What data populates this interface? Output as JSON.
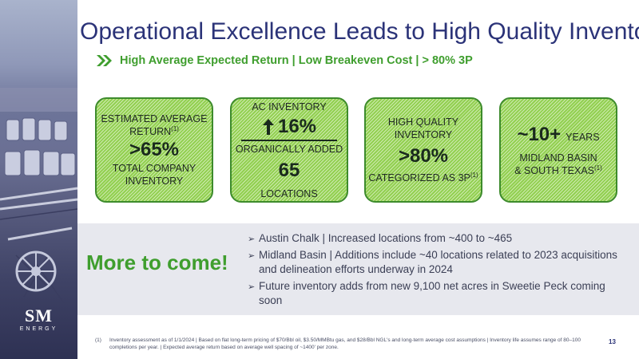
{
  "title": "Operational Excellence Leads to High Quality Inventory",
  "subtitle": "High Average Expected Return | Low Breakeven Cost | > 80% 3P",
  "cards": [
    {
      "line1": "ESTIMATED AVERAGE",
      "line2": "RETURN",
      "sup": "(1)",
      "big": ">65%",
      "line3": "TOTAL COMPANY",
      "line4": "INVENTORY"
    },
    {
      "line1": "AC INVENTORY",
      "big": "16%",
      "line2": "ORGANICALLY ADDED",
      "big2": "65",
      "line3": "LOCATIONS"
    },
    {
      "line1": "HIGH QUALITY",
      "line2": "INVENTORY",
      "big": ">80%",
      "line3": "CATEGORIZED AS 3P",
      "sup": "(1)"
    },
    {
      "big": "~10+",
      "small": "YEARS",
      "line2": "MIDLAND BASIN",
      "line3": "& SOUTH TEXAS",
      "sup": "(1)"
    }
  ],
  "more_to_come": "More to come!",
  "bullets": [
    "Austin Chalk | Increased locations from ~400 to ~465",
    "Midland Basin | Additions include ~40 locations related to 2023 acquisitions and delineation efforts underway in 2024",
    "Future inventory adds from new 9,100 net acres in Sweetie Peck coming soon"
  ],
  "bullet_glyph": "➢",
  "footnote": {
    "num": "(1)",
    "text": "Inventory assessment as of 1/1/2024 | Based on flat long-term pricing of $70/Bbl oil, $3.50/MMBtu gas, and $28/Bbl NGL's and long-term average cost assumptions | Inventory life assumes range of 80–100 completions per year. | Expected average return based on average well spacing of ~1400' per zone."
  },
  "page_number": "13",
  "logo": {
    "mark": "SM",
    "word": "ENERGY"
  },
  "colors": {
    "navy": "#2b3378",
    "green": "#3f9e2e",
    "card_fill": "#92d050",
    "band": "#e7e8ee"
  }
}
